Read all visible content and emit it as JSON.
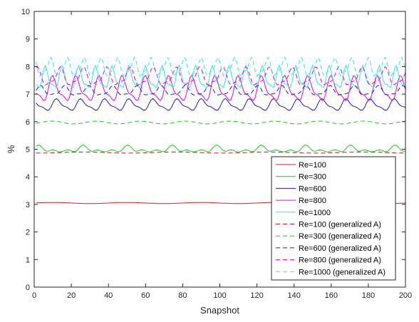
{
  "chart_data": {
    "type": "line",
    "xlabel": "Snapshot",
    "ylabel": "%",
    "xlim": [
      0,
      200
    ],
    "ylim": [
      0,
      10
    ],
    "xticks": [
      0,
      20,
      40,
      60,
      80,
      100,
      120,
      140,
      160,
      180,
      200
    ],
    "yticks": [
      0,
      1,
      2,
      3,
      4,
      5,
      6,
      7,
      8,
      9,
      10
    ],
    "grid": false,
    "legend_position": "bottom-right",
    "series": [
      {
        "name": "Re=100",
        "color": "#e41a1c",
        "dash": "solid",
        "x_range": [
          1,
          200
        ],
        "mean": 3.05,
        "amplitude": 0.02,
        "period": 40,
        "shape": "smooth"
      },
      {
        "name": "Re=300",
        "color": "#1ec81e",
        "dash": "solid",
        "x_range": [
          1,
          200
        ],
        "mean": 5.0,
        "amplitude": 0.12,
        "period": 24,
        "shape": "bumpy"
      },
      {
        "name": "Re=600",
        "color": "#1a1acd",
        "dash": "solid",
        "x_range": [
          1,
          200
        ],
        "mean": 6.6,
        "amplitude": 0.25,
        "period": 13,
        "shape": "wave"
      },
      {
        "name": "Re=800",
        "color": "#e600e6",
        "dash": "solid",
        "x_range": [
          1,
          200
        ],
        "mean": 7.15,
        "amplitude": 0.55,
        "period": 12.5,
        "shape": "wave"
      },
      {
        "name": "Re=1000",
        "color": "#33e6e6",
        "dash": "solid",
        "x_range": [
          1,
          200
        ],
        "mean": 7.55,
        "amplitude": 0.5,
        "period": 9,
        "shape": "wave"
      },
      {
        "name": "Re=100 (generalized A)",
        "color": "#b22222",
        "dash": "dashed",
        "x_range": [
          1,
          200
        ],
        "mean": 4.88,
        "amplitude": 0.02,
        "period": 50,
        "shape": "smooth"
      },
      {
        "name": "Re=300 (generalized A)",
        "color": "#1ec81e",
        "dash": "dashed",
        "x_range": [
          1,
          200
        ],
        "mean": 5.97,
        "amplitude": 0.05,
        "period": 24,
        "shape": "smooth"
      },
      {
        "name": "Re=600 (generalized A)",
        "color": "#1a1acd",
        "dash": "dashed",
        "x_range": [
          1,
          200
        ],
        "mean": 7.1,
        "amplitude": 0.22,
        "period": 13,
        "shape": "wave"
      },
      {
        "name": "Re=800 (generalized A)",
        "color": "#e600e6",
        "dash": "dashed",
        "x_range": [
          1,
          200
        ],
        "mean": 7.6,
        "amplitude": 0.4,
        "period": 12.5,
        "shape": "wave"
      },
      {
        "name": "Re=1000 (generalized A)",
        "color": "#33e6e6",
        "dash": "dashed",
        "x_range": [
          1,
          200
        ],
        "mean": 7.95,
        "amplitude": 0.4,
        "period": 9,
        "shape": "wave"
      }
    ]
  }
}
